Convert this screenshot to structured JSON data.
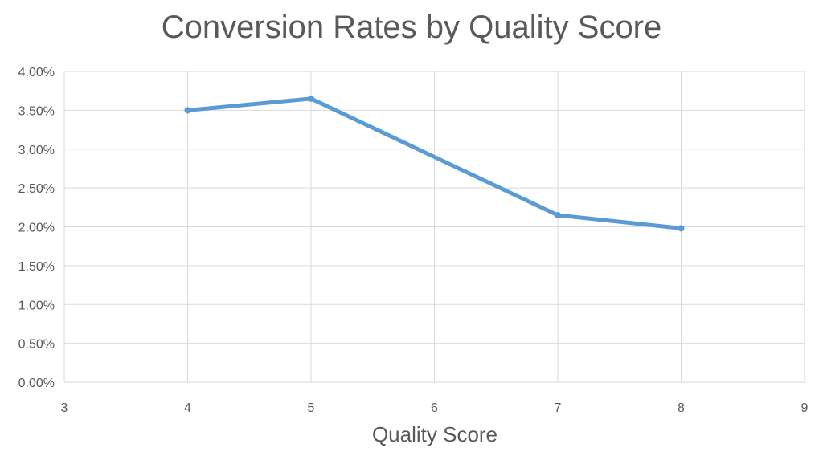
{
  "chart_data": {
    "type": "scatter",
    "title": "Conversion Rates by Quality Score",
    "xlabel": "Quality Score",
    "ylabel": "",
    "xlim": [
      3,
      9
    ],
    "ylim": [
      0,
      0.04
    ],
    "x_ticks": [
      "3",
      "4",
      "5",
      "6",
      "7",
      "8",
      "9"
    ],
    "y_ticks": [
      "0.00%",
      "0.50%",
      "1.00%",
      "1.50%",
      "2.00%",
      "2.50%",
      "3.00%",
      "3.50%",
      "4.00%"
    ],
    "grid": true,
    "legend": "none",
    "series": [
      {
        "color": "#5b9bd5",
        "x": [
          4,
          5,
          7,
          8
        ],
        "y": [
          0.035,
          0.0365,
          0.0215,
          0.0198
        ]
      }
    ]
  }
}
